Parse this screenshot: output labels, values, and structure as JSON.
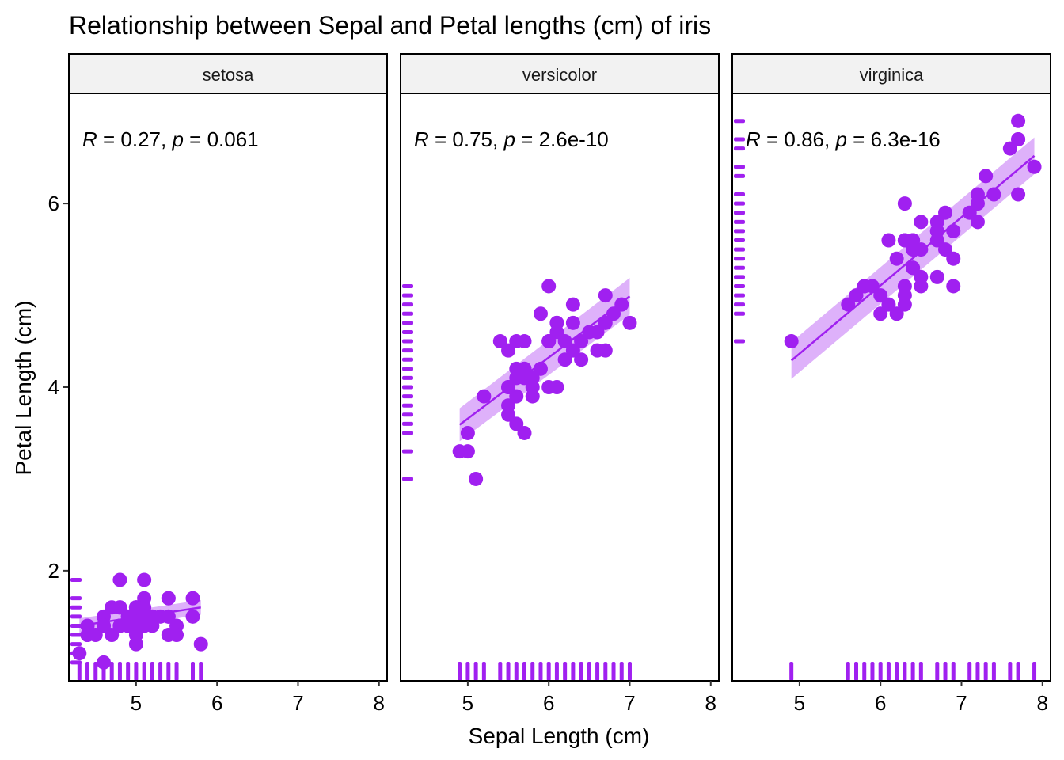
{
  "chart_data": {
    "type": "scatter",
    "title": "Relationship between Sepal and Petal lengths (cm) of iris",
    "xlabel": "Sepal Length (cm)",
    "ylabel": "Petal Length (cm)",
    "xlim": [
      4.17,
      8.1
    ],
    "ylim": [
      0.8,
      7.2
    ],
    "x_ticks": [
      "5",
      "6",
      "7",
      "8"
    ],
    "y_ticks": [
      "2",
      "4",
      "6"
    ],
    "grid": false,
    "point_color": "#a020f0",
    "band_color": "#a020f0",
    "rug": true,
    "panels": [
      {
        "name": "setosa",
        "annotation": {
          "r_label": "R",
          "r_value": " = 0.27, ",
          "p_label": "p",
          "p_value": " = 0.061"
        },
        "fit": {
          "x0": 4.3,
          "y0": 1.4,
          "x1": 5.8,
          "y1": 1.6,
          "se0": 0.08,
          "se1": 0.08
        },
        "x": [
          5.1,
          4.9,
          4.7,
          4.6,
          5.0,
          5.4,
          4.6,
          5.0,
          4.4,
          4.9,
          5.4,
          4.8,
          4.8,
          4.3,
          5.8,
          5.7,
          5.4,
          5.1,
          5.7,
          5.1,
          5.4,
          5.1,
          4.6,
          5.1,
          4.8,
          5.0,
          5.0,
          5.2,
          5.2,
          4.7,
          4.8,
          5.4,
          5.2,
          5.5,
          4.9,
          5.0,
          5.5,
          4.9,
          4.4,
          5.1,
          5.0,
          4.5,
          4.4,
          5.0,
          5.1,
          4.8,
          5.1,
          4.6,
          5.3,
          5.0
        ],
        "y": [
          1.4,
          1.4,
          1.3,
          1.5,
          1.4,
          1.7,
          1.4,
          1.5,
          1.4,
          1.5,
          1.5,
          1.6,
          1.4,
          1.1,
          1.2,
          1.5,
          1.3,
          1.4,
          1.7,
          1.5,
          1.7,
          1.5,
          1.0,
          1.7,
          1.9,
          1.6,
          1.6,
          1.5,
          1.4,
          1.6,
          1.6,
          1.5,
          1.5,
          1.4,
          1.5,
          1.2,
          1.3,
          1.4,
          1.3,
          1.5,
          1.3,
          1.3,
          1.3,
          1.6,
          1.9,
          1.4,
          1.6,
          1.4,
          1.5,
          1.4
        ]
      },
      {
        "name": "versicolor",
        "annotation": {
          "r_label": "R",
          "r_value": " = 0.75, ",
          "p_label": "p",
          "p_value": " = 2.6e-10"
        },
        "fit": {
          "x0": 4.9,
          "y0": 3.59,
          "x1": 7.0,
          "y1": 4.99,
          "se0": 0.18,
          "se1": 0.2
        },
        "x": [
          7.0,
          6.4,
          6.9,
          5.5,
          6.5,
          5.7,
          6.3,
          4.9,
          6.6,
          5.2,
          5.0,
          5.9,
          6.0,
          6.1,
          5.6,
          6.7,
          5.6,
          5.8,
          6.2,
          5.6,
          5.9,
          6.1,
          6.3,
          6.1,
          6.4,
          6.6,
          6.8,
          6.7,
          6.0,
          5.7,
          5.5,
          5.5,
          5.8,
          6.0,
          5.4,
          6.0,
          6.7,
          6.3,
          5.6,
          5.5,
          5.5,
          6.1,
          5.8,
          5.0,
          5.6,
          5.7,
          5.7,
          6.2,
          5.1,
          5.7
        ],
        "y": [
          4.7,
          4.5,
          4.9,
          4.0,
          4.6,
          4.5,
          4.7,
          3.3,
          4.6,
          3.9,
          3.5,
          4.2,
          4.0,
          4.7,
          3.6,
          4.4,
          4.5,
          4.1,
          4.5,
          3.9,
          4.8,
          4.0,
          4.9,
          4.7,
          4.3,
          4.4,
          4.8,
          5.0,
          4.5,
          3.5,
          3.8,
          3.7,
          3.9,
          5.1,
          4.5,
          4.5,
          4.7,
          4.4,
          4.1,
          4.0,
          4.4,
          4.6,
          4.0,
          3.3,
          4.2,
          4.2,
          4.2,
          4.3,
          3.0,
          4.1
        ]
      },
      {
        "name": "virginica",
        "annotation": {
          "r_label": "R",
          "r_value": " = 0.86, ",
          "p_label": "p",
          "p_value": " = 6.3e-16"
        },
        "fit": {
          "x0": 4.9,
          "y0": 4.29,
          "x1": 7.9,
          "y1": 6.52,
          "se0": 0.2,
          "se1": 0.2
        },
        "x": [
          6.3,
          5.8,
          7.1,
          6.3,
          6.5,
          7.6,
          4.9,
          7.3,
          6.7,
          7.2,
          6.5,
          6.4,
          6.8,
          5.7,
          5.8,
          6.4,
          6.5,
          7.7,
          7.7,
          6.0,
          6.9,
          5.6,
          7.7,
          6.3,
          6.7,
          7.2,
          6.2,
          6.1,
          6.4,
          7.2,
          7.4,
          7.9,
          6.4,
          6.3,
          6.1,
          7.7,
          6.3,
          6.4,
          6.0,
          6.9,
          6.7,
          6.9,
          5.8,
          6.8,
          6.7,
          6.7,
          6.3,
          6.5,
          6.2,
          5.9
        ],
        "y": [
          6.0,
          5.1,
          5.9,
          5.6,
          5.8,
          6.6,
          4.5,
          6.3,
          5.8,
          6.1,
          5.1,
          5.3,
          5.5,
          5.0,
          5.1,
          5.3,
          5.5,
          6.7,
          6.9,
          5.0,
          5.7,
          4.9,
          6.7,
          4.9,
          5.7,
          6.0,
          4.8,
          4.9,
          5.6,
          5.8,
          6.1,
          6.4,
          5.6,
          5.1,
          5.6,
          6.1,
          5.6,
          5.5,
          4.8,
          5.4,
          5.6,
          5.1,
          5.1,
          5.9,
          5.7,
          5.2,
          5.0,
          5.2,
          5.4,
          5.1
        ]
      }
    ]
  }
}
